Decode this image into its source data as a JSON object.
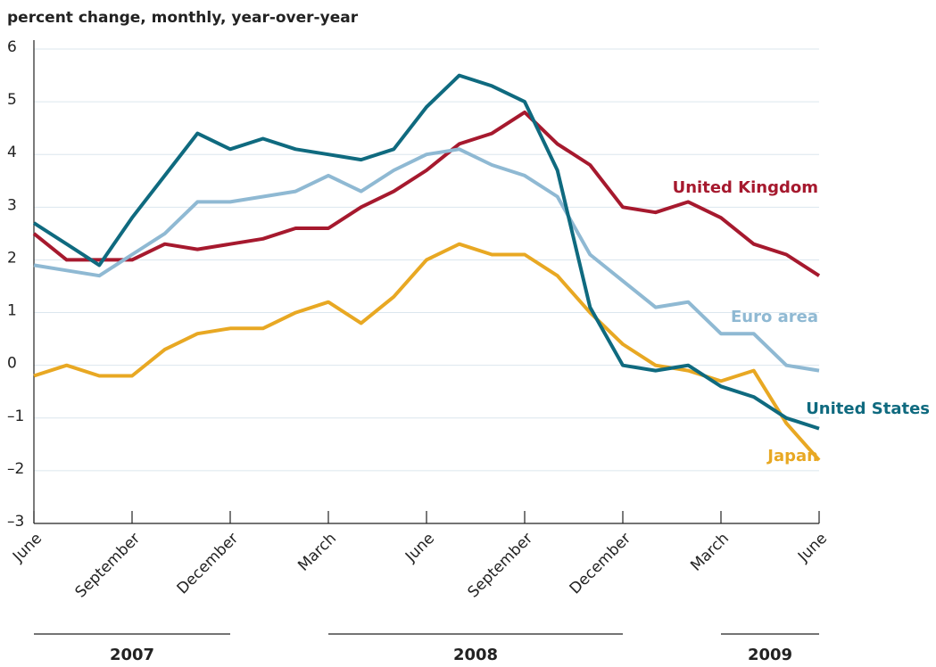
{
  "chart_data": {
    "type": "line",
    "y_label": "percent change, monthly, year-over-year",
    "categories": [
      "June",
      null,
      null,
      "September",
      null,
      null,
      "December",
      null,
      null,
      "March",
      null,
      null,
      "June",
      null,
      null,
      "September",
      null,
      null,
      "December",
      null,
      null,
      "March",
      null,
      null,
      "June"
    ],
    "years": [
      "2007",
      "2008",
      "2009"
    ],
    "ylim": [
      -3,
      6
    ],
    "yticks": [
      {
        "value": -3,
        "label": "–3"
      },
      {
        "value": -2,
        "label": "–2"
      },
      {
        "value": -1,
        "label": "–1"
      },
      0,
      1,
      2,
      3,
      4,
      5,
      6
    ],
    "grid": true,
    "series": [
      {
        "name": "United Kingdom",
        "color": "#a6192e",
        "values": [
          2.5,
          2.0,
          2.0,
          2.0,
          2.3,
          2.2,
          2.3,
          2.4,
          2.6,
          2.6,
          3.0,
          3.3,
          3.7,
          4.2,
          4.4,
          4.8,
          4.2,
          3.8,
          3.0,
          2.9,
          3.1,
          2.8,
          2.3,
          2.1,
          1.7
        ]
      },
      {
        "name": "Euro area",
        "color": "#8fb9d3",
        "values": [
          1.9,
          1.8,
          1.7,
          2.1,
          2.5,
          3.1,
          3.1,
          3.2,
          3.3,
          3.6,
          3.3,
          3.7,
          4.0,
          4.1,
          3.8,
          3.6,
          3.2,
          2.1,
          1.6,
          1.1,
          1.2,
          0.6,
          0.6,
          0.0,
          -0.1
        ]
      },
      {
        "name": "Japan",
        "color": "#e8a823",
        "values": [
          -0.2,
          0.0,
          -0.2,
          -0.2,
          0.3,
          0.6,
          0.7,
          0.7,
          1.0,
          1.2,
          0.8,
          1.3,
          2.0,
          2.3,
          2.1,
          2.1,
          1.7,
          1.0,
          0.4,
          0.0,
          -0.1,
          -0.3,
          -0.1,
          -1.1,
          -1.8
        ]
      },
      {
        "name": "United States",
        "color": "#0f6a7f",
        "values": [
          2.7,
          2.3,
          1.9,
          2.8,
          3.6,
          4.4,
          4.1,
          4.3,
          4.1,
          4.0,
          3.9,
          4.1,
          4.9,
          5.5,
          5.3,
          5.0,
          3.7,
          1.1,
          0.0,
          -0.1,
          0.0,
          -0.4,
          -0.6,
          -1.0,
          -1.2
        ]
      }
    ]
  }
}
